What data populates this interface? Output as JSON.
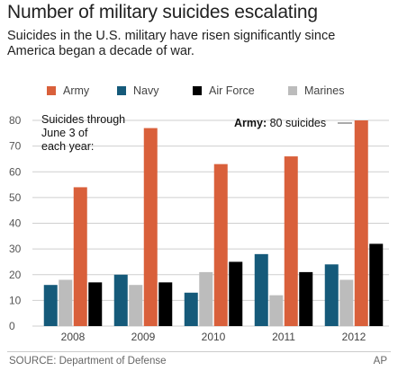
{
  "title": "Number of military suicides escalating",
  "subtitle": "Suicides in the U.S. military have risen significantly since America began a decade of war.",
  "source": "SOURCE: Department of Defense",
  "credit": "AP",
  "note": {
    "lines": [
      "Suicides through",
      "June 3 of",
      "each year:"
    ]
  },
  "army_callout": {
    "bold": "Army:",
    "rest": " 80 suicides"
  },
  "legend": [
    {
      "name": "Army",
      "color": "#d9603b"
    },
    {
      "name": "Navy",
      "color": "#155a7a"
    },
    {
      "name": "Air Force",
      "color": "#000000"
    },
    {
      "name": "Marines",
      "color": "#bcbcbc"
    }
  ],
  "chart_data": {
    "type": "bar",
    "title": "Number of military suicides escalating",
    "categories": [
      "2008",
      "2009",
      "2010",
      "2011",
      "2012"
    ],
    "ylim": [
      0,
      80
    ],
    "yticks": [
      0,
      10,
      20,
      30,
      40,
      50,
      60,
      70,
      80
    ],
    "grid": true,
    "legend_position": "top",
    "series": [
      {
        "name": "Navy",
        "color": "#155a7a",
        "values": [
          16,
          20,
          13,
          28,
          24
        ]
      },
      {
        "name": "Marines",
        "color": "#bcbcbc",
        "values": [
          18,
          16,
          21,
          12,
          18
        ]
      },
      {
        "name": "Army",
        "color": "#d9603b",
        "values": [
          54,
          77,
          63,
          66,
          80
        ]
      },
      {
        "name": "Air Force",
        "color": "#000000",
        "values": [
          17,
          17,
          25,
          21,
          32
        ]
      }
    ]
  }
}
